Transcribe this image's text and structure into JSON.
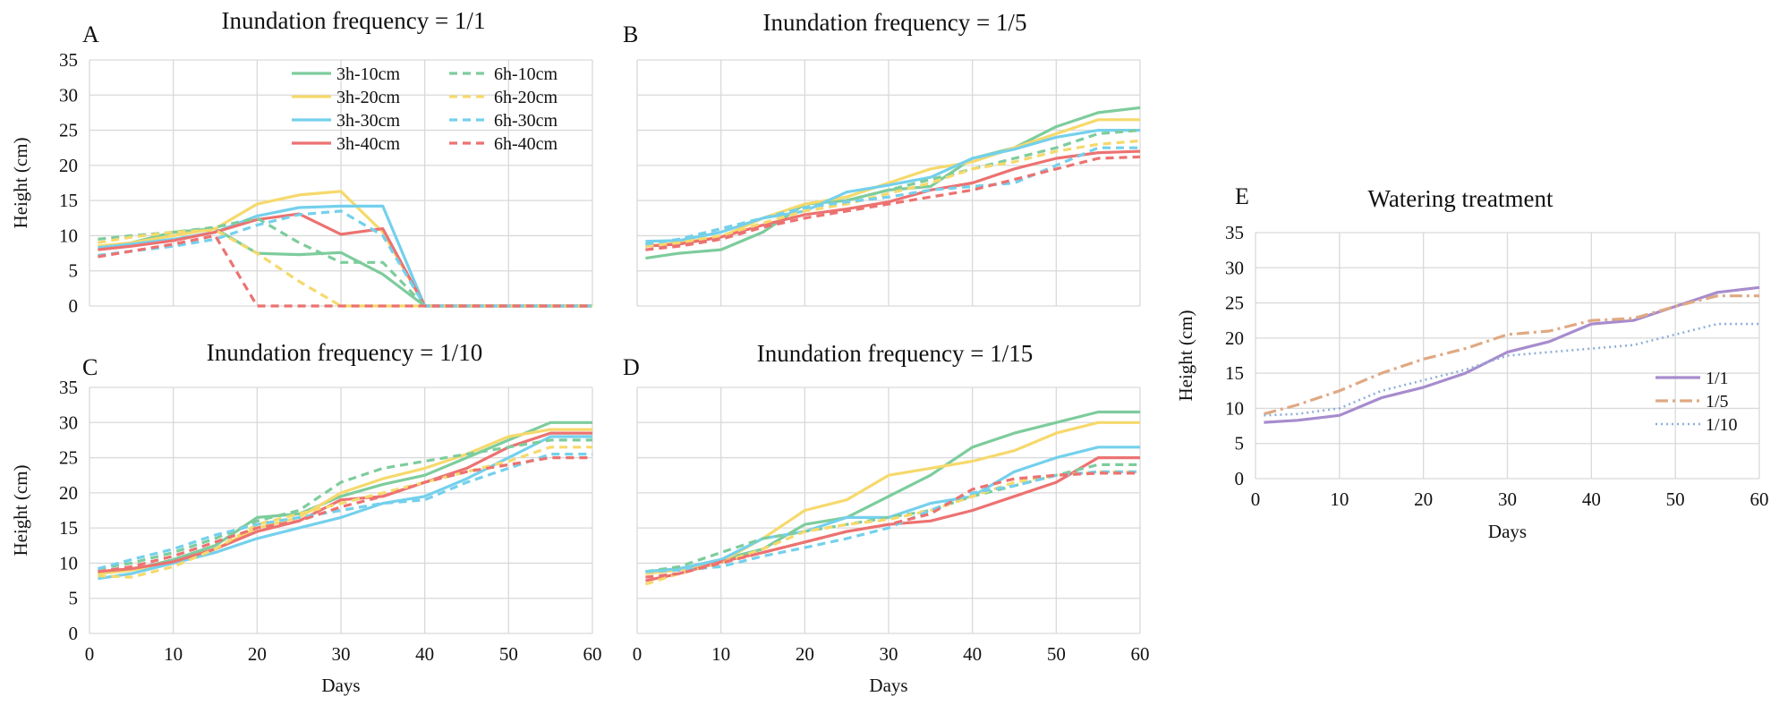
{
  "figure": {
    "colors": {
      "green": "#7dcc9c",
      "yellow": "#f6d96c",
      "blue": "#74d0ec",
      "red": "#ec7271",
      "purple": "#a78ccd",
      "tan": "#dfa983",
      "steel": "#8eaedb"
    }
  },
  "chart_data": [
    {
      "panel": "A",
      "type": "line",
      "title": "Inundation frequency = 1/1",
      "xlabel": "",
      "ylabel": "Height (cm)",
      "xlim": [
        0,
        60
      ],
      "ylim": [
        0,
        35
      ],
      "x_ticks": [
        0,
        10,
        20,
        30,
        40,
        50,
        60
      ],
      "y_ticks": [
        0,
        5,
        10,
        15,
        20,
        25,
        30,
        35
      ],
      "show_x_tick_labels": false,
      "show_y_tick_labels": true,
      "legend": "top-center",
      "x": [
        1,
        5,
        10,
        15,
        20,
        25,
        30,
        35,
        40,
        45,
        50,
        55,
        60
      ],
      "series": [
        {
          "name": "3h-10cm",
          "color": "green",
          "dash": "solid",
          "values": [
            8,
            9,
            10.5,
            11,
            7.5,
            7.3,
            7.6,
            4.5,
            0,
            0,
            0,
            0,
            0
          ]
        },
        {
          "name": "3h-20cm",
          "color": "yellow",
          "dash": "solid",
          "values": [
            8.5,
            9,
            10,
            11,
            14.5,
            15.8,
            16.3,
            10.5,
            0,
            0,
            0,
            0,
            0
          ]
        },
        {
          "name": "3h-30cm",
          "color": "blue",
          "dash": "solid",
          "values": [
            8.3,
            8.8,
            9.5,
            10.5,
            12.8,
            14,
            14.2,
            14.2,
            0,
            0,
            0,
            0,
            0
          ]
        },
        {
          "name": "3h-40cm",
          "color": "red",
          "dash": "solid",
          "values": [
            8,
            8.5,
            9.3,
            10.5,
            12.3,
            13.1,
            10.2,
            11,
            0,
            0,
            0,
            0,
            0
          ]
        },
        {
          "name": "6h-10cm",
          "color": "green",
          "dash": "dashed",
          "values": [
            9.5,
            10,
            10.5,
            11.2,
            12.5,
            9,
            6.2,
            6.2,
            0,
            0,
            0,
            0,
            0
          ]
        },
        {
          "name": "6h-20cm",
          "color": "yellow",
          "dash": "dashed",
          "values": [
            9,
            9.8,
            10.5,
            10.8,
            7.5,
            3.5,
            0,
            0,
            0,
            0,
            0,
            0,
            0
          ]
        },
        {
          "name": "6h-30cm",
          "color": "blue",
          "dash": "dashed",
          "values": [
            7.2,
            7.8,
            8.5,
            9.5,
            11.5,
            13,
            13.5,
            10,
            0,
            0,
            0,
            0,
            0
          ]
        },
        {
          "name": "6h-40cm",
          "color": "red",
          "dash": "dashed",
          "values": [
            7,
            7.8,
            8.8,
            10,
            0,
            0,
            0,
            0,
            0,
            0,
            0,
            0,
            0
          ]
        }
      ]
    },
    {
      "panel": "B",
      "type": "line",
      "title": "Inundation frequency = 1/5",
      "xlabel": "",
      "ylabel": "",
      "xlim": [
        0,
        60
      ],
      "ylim": [
        0,
        35
      ],
      "x_ticks": [
        0,
        10,
        20,
        30,
        40,
        50,
        60
      ],
      "y_ticks": [
        0,
        5,
        10,
        15,
        20,
        25,
        30,
        35
      ],
      "show_x_tick_labels": false,
      "show_y_tick_labels": false,
      "x": [
        1,
        5,
        10,
        15,
        20,
        25,
        30,
        35,
        40,
        45,
        50,
        55,
        60
      ],
      "series": [
        {
          "name": "3h-10cm",
          "color": "green",
          "dash": "solid",
          "values": [
            6.8,
            7.5,
            8,
            10.5,
            14.5,
            15,
            16.5,
            17,
            21,
            22.5,
            25.5,
            27.5,
            28.2
          ]
        },
        {
          "name": "3h-20cm",
          "color": "yellow",
          "dash": "solid",
          "values": [
            8.5,
            9,
            9.8,
            12.5,
            14.5,
            15.5,
            17.5,
            19.5,
            20.5,
            22.5,
            24.5,
            26.5,
            26.5
          ]
        },
        {
          "name": "3h-30cm",
          "color": "blue",
          "dash": "solid",
          "values": [
            9.2,
            9.3,
            10.5,
            12.5,
            13.5,
            16.2,
            17.2,
            18.3,
            21,
            22.3,
            24,
            25,
            25
          ]
        },
        {
          "name": "3h-40cm",
          "color": "red",
          "dash": "solid",
          "values": [
            8.5,
            8.8,
            9.8,
            11.5,
            13,
            13.8,
            14.8,
            16.5,
            17.5,
            19.5,
            21,
            21.8,
            22
          ]
        },
        {
          "name": "6h-10cm",
          "color": "green",
          "dash": "dashed",
          "values": [
            8.8,
            9.5,
            11,
            12.5,
            14,
            15,
            16.5,
            18,
            19.5,
            21,
            22.5,
            24.5,
            25
          ]
        },
        {
          "name": "6h-20cm",
          "color": "yellow",
          "dash": "dashed",
          "values": [
            8.5,
            9,
            10,
            11.8,
            13.5,
            14.5,
            16,
            17.5,
            19.5,
            20.5,
            22,
            23,
            23.5
          ]
        },
        {
          "name": "6h-30cm",
          "color": "blue",
          "dash": "dashed",
          "values": [
            8.8,
            9.5,
            11,
            12.5,
            14,
            14.8,
            15.5,
            16.5,
            17,
            17.5,
            20,
            22.5,
            22.5
          ]
        },
        {
          "name": "6h-40cm",
          "color": "red",
          "dash": "dashed",
          "values": [
            8,
            8.5,
            9.5,
            11.2,
            12.5,
            13.5,
            14.5,
            15.5,
            16.5,
            18,
            19.5,
            21,
            21.2
          ]
        }
      ]
    },
    {
      "panel": "C",
      "type": "line",
      "title": "Inundation frequency = 1/10",
      "xlabel": "Days",
      "ylabel": "Height (cm)",
      "xlim": [
        0,
        60
      ],
      "ylim": [
        0,
        35
      ],
      "x_ticks": [
        0,
        10,
        20,
        30,
        40,
        50,
        60
      ],
      "y_ticks": [
        0,
        5,
        10,
        15,
        20,
        25,
        30,
        35
      ],
      "show_x_tick_labels": true,
      "show_y_tick_labels": true,
      "x": [
        1,
        5,
        10,
        15,
        20,
        25,
        30,
        35,
        40,
        45,
        50,
        55,
        60
      ],
      "series": [
        {
          "name": "3h-10cm",
          "color": "green",
          "dash": "solid",
          "values": [
            8.5,
            9,
            10.5,
            12.5,
            16.5,
            17,
            19.5,
            21.2,
            22.5,
            25,
            27.5,
            30,
            30
          ]
        },
        {
          "name": "3h-20cm",
          "color": "yellow",
          "dash": "solid",
          "values": [
            8.5,
            9,
            10,
            12,
            15,
            16.5,
            20,
            22,
            23.5,
            25.5,
            28,
            29,
            29
          ]
        },
        {
          "name": "3h-30cm",
          "color": "blue",
          "dash": "solid",
          "values": [
            7.8,
            8.5,
            10,
            11.5,
            13.5,
            15,
            16.5,
            18.5,
            19.5,
            22,
            25,
            28,
            28
          ]
        },
        {
          "name": "3h-40cm",
          "color": "red",
          "dash": "solid",
          "values": [
            8.8,
            9.2,
            10.2,
            12,
            14.5,
            16,
            19,
            19.5,
            21.5,
            23.5,
            26.5,
            28.5,
            28.5
          ]
        },
        {
          "name": "6h-10cm",
          "color": "green",
          "dash": "dashed",
          "values": [
            9.2,
            10,
            11.5,
            13.5,
            16,
            17.5,
            21.5,
            23.5,
            24.5,
            25.5,
            26.5,
            27.5,
            27.5
          ]
        },
        {
          "name": "6h-20cm",
          "color": "yellow",
          "dash": "dashed",
          "values": [
            8.2,
            8,
            9.5,
            12,
            15.5,
            17,
            18.5,
            20,
            21.5,
            23,
            24.5,
            26.5,
            26.5
          ]
        },
        {
          "name": "6h-30cm",
          "color": "blue",
          "dash": "dashed",
          "values": [
            9.2,
            10.5,
            12,
            14,
            15.5,
            16.5,
            17.5,
            18.5,
            19,
            21.5,
            23.5,
            25.5,
            25.5
          ]
        },
        {
          "name": "6h-40cm",
          "color": "red",
          "dash": "dashed",
          "values": [
            8.8,
            9.5,
            11,
            13,
            15,
            16,
            18,
            19.5,
            21.5,
            23,
            24,
            25,
            25
          ]
        }
      ]
    },
    {
      "panel": "D",
      "type": "line",
      "title": "Inundation frequency = 1/15",
      "xlabel": "Days",
      "ylabel": "",
      "xlim": [
        0,
        60
      ],
      "ylim": [
        0,
        35
      ],
      "x_ticks": [
        0,
        10,
        20,
        30,
        40,
        50,
        60
      ],
      "y_ticks": [
        0,
        5,
        10,
        15,
        20,
        25,
        30,
        35
      ],
      "show_x_tick_labels": true,
      "show_y_tick_labels": false,
      "x": [
        1,
        5,
        10,
        15,
        20,
        25,
        30,
        35,
        40,
        45,
        50,
        55,
        60
      ],
      "series": [
        {
          "name": "3h-10cm",
          "color": "green",
          "dash": "solid",
          "values": [
            8.8,
            9.2,
            10.5,
            12,
            15.5,
            16.5,
            19.5,
            22.5,
            26.5,
            28.5,
            30,
            31.5,
            31.5
          ]
        },
        {
          "name": "3h-20cm",
          "color": "yellow",
          "dash": "solid",
          "values": [
            8.5,
            9,
            10.2,
            13.5,
            17.5,
            19,
            22.5,
            23.5,
            24.5,
            26,
            28.5,
            30,
            30
          ]
        },
        {
          "name": "3h-30cm",
          "color": "blue",
          "dash": "solid",
          "values": [
            8.8,
            9.2,
            10.5,
            13.5,
            14.5,
            16.5,
            16.5,
            18.5,
            19.5,
            23,
            25,
            26.5,
            26.5
          ]
        },
        {
          "name": "3h-40cm",
          "color": "red",
          "dash": "solid",
          "values": [
            7.5,
            8.5,
            10.2,
            11.5,
            13,
            14.5,
            15.5,
            16,
            17.5,
            19.5,
            21.5,
            25,
            25
          ]
        },
        {
          "name": "6h-10cm",
          "color": "green",
          "dash": "dashed",
          "values": [
            8.8,
            9.5,
            11.5,
            13.5,
            14.5,
            15.5,
            16.5,
            17.5,
            19.5,
            21,
            22.5,
            24,
            24
          ]
        },
        {
          "name": "6h-20cm",
          "color": "yellow",
          "dash": "dashed",
          "values": [
            7,
            8.5,
            10,
            12,
            14.5,
            15.5,
            16.2,
            17.5,
            19.5,
            21.5,
            22.5,
            23,
            23
          ]
        },
        {
          "name": "6h-30cm",
          "color": "blue",
          "dash": "dashed",
          "values": [
            8.8,
            9,
            9.5,
            11,
            12.2,
            13.5,
            15,
            17.5,
            20,
            21,
            22.5,
            23,
            23
          ]
        },
        {
          "name": "6h-40cm",
          "color": "red",
          "dash": "dashed",
          "values": [
            8,
            8.5,
            10,
            11.5,
            13,
            14.5,
            15.5,
            17,
            20.5,
            22,
            22.5,
            22.8,
            22.8
          ]
        }
      ]
    },
    {
      "panel": "E",
      "type": "line",
      "title": "Watering treatment",
      "xlabel": "Days",
      "ylabel": "Height (cm)",
      "xlim": [
        0,
        60
      ],
      "ylim": [
        0,
        35
      ],
      "x_ticks": [
        0,
        10,
        20,
        30,
        40,
        50,
        60
      ],
      "y_ticks": [
        0,
        5,
        10,
        15,
        20,
        25,
        30,
        35
      ],
      "show_x_tick_labels": true,
      "show_y_tick_labels": true,
      "legend": "right",
      "x": [
        1,
        5,
        10,
        15,
        20,
        25,
        30,
        35,
        40,
        45,
        50,
        55,
        60
      ],
      "series": [
        {
          "name": "1/1",
          "color": "purple",
          "dash": "solid",
          "values": [
            8,
            8.3,
            9,
            11.5,
            13,
            15,
            18,
            19.5,
            22,
            22.5,
            24.5,
            26.5,
            27.2
          ]
        },
        {
          "name": "1/5",
          "color": "tan",
          "dash": "dashdot",
          "values": [
            9.2,
            10.5,
            12.5,
            15,
            17,
            18.5,
            20.5,
            21,
            22.5,
            22.8,
            24.5,
            26,
            26
          ]
        },
        {
          "name": "1/10",
          "color": "steel",
          "dash": "dotted",
          "values": [
            9,
            9.2,
            10,
            12.5,
            14,
            15.5,
            17.5,
            18,
            18.5,
            19,
            20.5,
            22,
            22
          ]
        }
      ]
    }
  ]
}
